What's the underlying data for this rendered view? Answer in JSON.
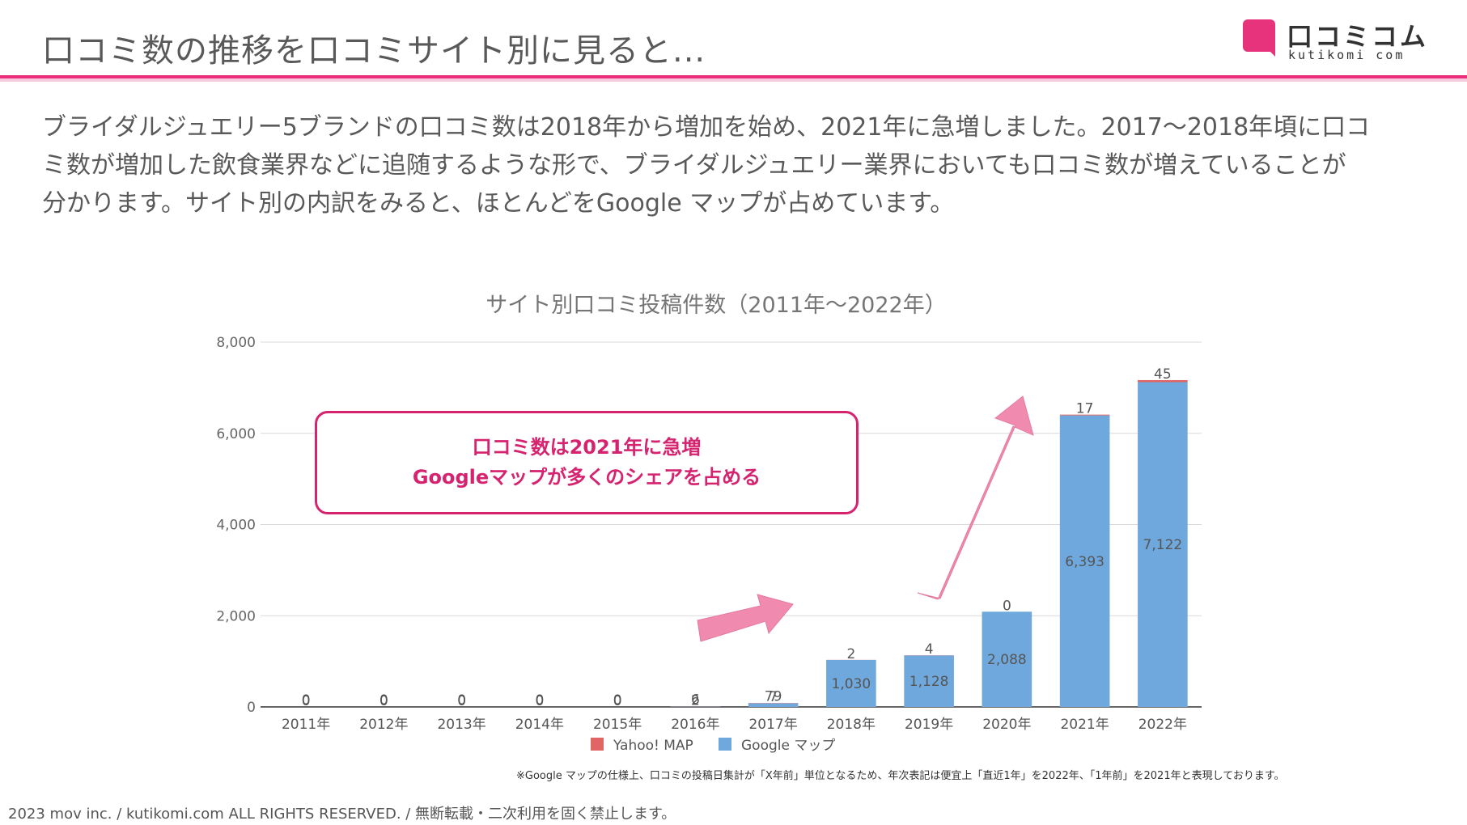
{
  "header": {
    "title": "口コミ数の推移を口コミサイト別に見ると...",
    "logo_jp": "口コミコム",
    "logo_en": "kutikomi com"
  },
  "intro": {
    "lines": [
      "ブライダルジュエリー5ブランドの口コミ数は2018年から増加を始め、2021年に急増しました。2017〜2018年頃に口コ",
      "ミ数が増加した飲食業界などに追随するような形で、ブライダルジュエリー業界においても口コミ数が増えていることが",
      "分かります。サイト別の内訳をみると、ほとんどをGoogle マップが占めています。"
    ]
  },
  "callout": {
    "line1": "口コミ数は2021年に急増",
    "line2": "Googleマップが多くのシェアを占める"
  },
  "chart_data": {
    "type": "bar",
    "stacked": true,
    "title": "サイト別口コミ投稿件数（2011年〜2022年）",
    "categories": [
      "2011年",
      "2012年",
      "2013年",
      "2014年",
      "2015年",
      "2016年",
      "2017年",
      "2018年",
      "2019年",
      "2020年",
      "2021年",
      "2022年"
    ],
    "series": [
      {
        "name": "Google マップ",
        "color": "#6fa8dc",
        "values": [
          0,
          0,
          0,
          0,
          0,
          6,
          79,
          1030,
          1128,
          2088,
          6393,
          7122
        ],
        "labels": [
          "0",
          "0",
          "0",
          "0",
          "0",
          "6",
          "79",
          "1,030",
          "1,128",
          "2,088",
          "6,393",
          "7,122"
        ]
      },
      {
        "name": "Yahoo! MAP",
        "color": "#e06666",
        "values": [
          0,
          0,
          0,
          0,
          0,
          2,
          7,
          2,
          4,
          0,
          17,
          45
        ],
        "labels": [
          "0",
          "0",
          "0",
          "0",
          "0",
          "2",
          "7",
          "2",
          "4",
          "0",
          "17",
          "45"
        ]
      }
    ],
    "ylim": [
      0,
      8000
    ],
    "yticks": [
      0,
      2000,
      4000,
      6000,
      8000
    ],
    "ytick_labels": [
      "0",
      "2,000",
      "4,000",
      "6,000",
      "8,000"
    ],
    "grid": true,
    "legend_position": "bottom",
    "legend_order": [
      "Yahoo! MAP",
      "Google マップ"
    ],
    "annotation_arrow_color": "#f08aae"
  },
  "footnote": "※Google マップの仕様上、口コミの投稿日集計が「X年前」単位となるため、年次表記は便宜上「直近1年」を2022年、「1年前」を2021年と表現しております。",
  "copyright": "2023 mov inc. / kutikomi.com ALL RIGHTS RESERVED. / 無断転載・二次利用を固く禁止します。"
}
